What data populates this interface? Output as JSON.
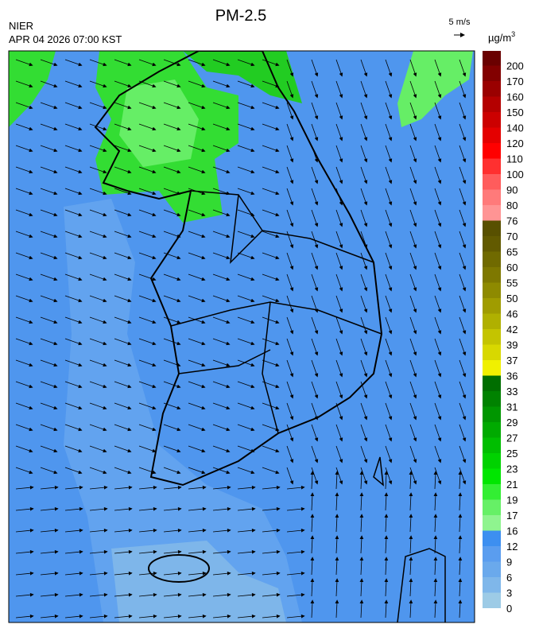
{
  "header": {
    "title": "PM-2.5",
    "source": "NIER",
    "datetime": "APR 04 2026 07:00 KST",
    "wind_scale": "5 m/s"
  },
  "colorbar": {
    "unit": "µg/m",
    "unit_exponent": "3",
    "levels": [
      0,
      3,
      6,
      9,
      12,
      16,
      17,
      19,
      21,
      23,
      25,
      27,
      29,
      31,
      33,
      36,
      37,
      39,
      42,
      46,
      50,
      55,
      60,
      65,
      70,
      76,
      80,
      90,
      100,
      110,
      120,
      140,
      150,
      160,
      170,
      200
    ],
    "colors": [
      "#9dcbe6",
      "#7fb7ea",
      "#6aa9ec",
      "#5a9def",
      "#3d8ff0",
      "#8ff48f",
      "#66f066",
      "#33ee33",
      "#00e600",
      "#00d200",
      "#00be00",
      "#00aa00",
      "#009600",
      "#008200",
      "#006e00",
      "#f0f000",
      "#d8d800",
      "#c4c400",
      "#b0b000",
      "#a09c00",
      "#8e8a00",
      "#7e7800",
      "#706a00",
      "#625a00",
      "#585000",
      "#ff9494",
      "#ff7a7a",
      "#ff5c5c",
      "#ff3030",
      "#ff0000",
      "#e40000",
      "#cc0000",
      "#b40000",
      "#9a0000",
      "#820000",
      "#6a0000"
    ]
  }
}
